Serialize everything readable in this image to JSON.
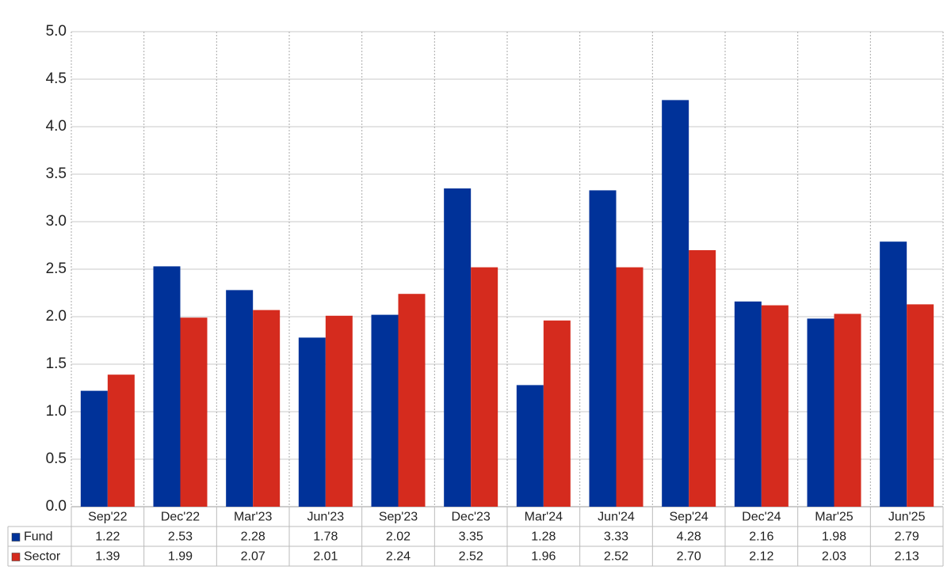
{
  "chart_data": {
    "type": "bar",
    "categories": [
      "Sep'22",
      "Dec'22",
      "Mar'23",
      "Jun'23",
      "Sep'23",
      "Dec'23",
      "Mar'24",
      "Jun'24",
      "Sep'24",
      "Dec'24",
      "Mar'25",
      "Jun'25"
    ],
    "series": [
      {
        "name": "Fund",
        "color": "#003299",
        "values": [
          1.22,
          2.53,
          2.28,
          1.78,
          2.02,
          3.35,
          1.28,
          3.33,
          4.28,
          2.16,
          1.98,
          2.79
        ],
        "value_labels": [
          "1.22",
          "2.53",
          "2.28",
          "1.78",
          "2.02",
          "3.35",
          "1.28",
          "3.33",
          "4.28",
          "2.16",
          "1.98",
          "2.79"
        ]
      },
      {
        "name": "Sector",
        "color": "#d52b1e",
        "values": [
          1.39,
          1.99,
          2.07,
          2.01,
          2.24,
          2.52,
          1.96,
          2.52,
          2.7,
          2.12,
          2.03,
          2.13
        ],
        "value_labels": [
          "1.39",
          "1.99",
          "2.07",
          "2.01",
          "2.24",
          "2.52",
          "1.96",
          "2.52",
          "2.70",
          "2.12",
          "2.03",
          "2.13"
        ]
      }
    ],
    "ylim": [
      0,
      5
    ],
    "yticks": [
      {
        "value": 0,
        "label": "0.0"
      },
      {
        "value": 0.5,
        "label": "0.5"
      },
      {
        "value": 1,
        "label": "1.0"
      },
      {
        "value": 1.5,
        "label": "1.5"
      },
      {
        "value": 2,
        "label": "2.0"
      },
      {
        "value": 2.5,
        "label": "2.5"
      },
      {
        "value": 3,
        "label": "3.0"
      },
      {
        "value": 3.5,
        "label": "3.5"
      },
      {
        "value": 4,
        "label": "4.0"
      },
      {
        "value": 4.5,
        "label": "4.5"
      },
      {
        "value": 5,
        "label": "5.0"
      }
    ],
    "grid": true
  }
}
